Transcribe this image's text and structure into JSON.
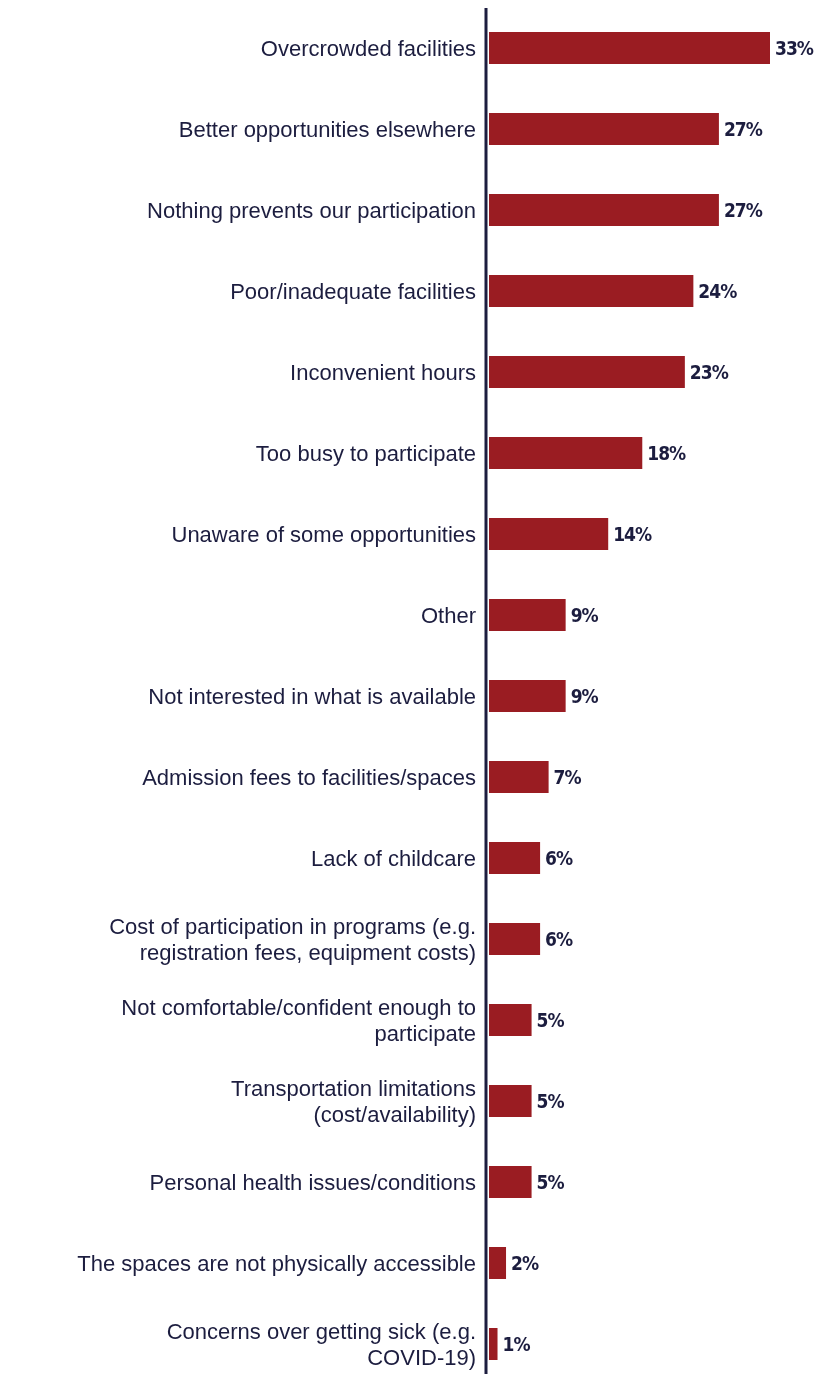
{
  "chart_data": {
    "type": "bar",
    "orientation": "horizontal",
    "color": "#9a1c22",
    "value_labels": [
      "33%",
      "27%",
      "27%",
      "24%",
      "23%",
      "18%",
      "14%",
      "9%",
      "9%",
      "7%",
      "6%",
      "6%",
      "5%",
      "5%",
      "5%",
      "2%",
      "1%"
    ],
    "categories": [
      "Overcrowded facilities",
      "Better opportunities elsewhere",
      "Nothing prevents our participation",
      "Poor/inadequate facilities",
      "Inconvenient hours",
      "Too busy to participate",
      "Unaware of some opportunities",
      "Other",
      "Not interested in what is available",
      "Admission fees to facilities/spaces",
      "Lack of childcare",
      "Cost of participation in programs (e.g. registration fees, equipment costs)",
      "Not comfortable/confident enough to participate",
      "Transportation limitations (cost/availability)",
      "Personal health issues/conditions",
      "The spaces are not physically accessible",
      "Concerns over getting sick (e.g. COVID-19)"
    ],
    "values": [
      33,
      27,
      27,
      24,
      23,
      18,
      14,
      9,
      9,
      7,
      6,
      6,
      5,
      5,
      5,
      2,
      1
    ]
  }
}
